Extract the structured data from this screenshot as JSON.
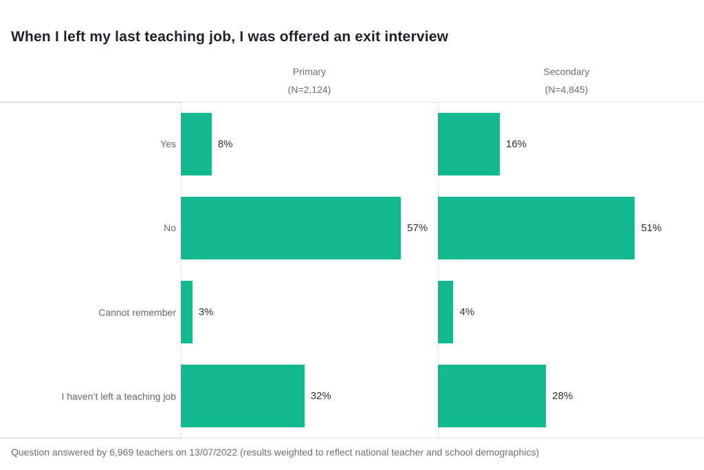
{
  "colors": {
    "bar": "#12b88e",
    "title_text": "#1f2328",
    "muted_text": "#6a6f74",
    "category_text": "#63686d",
    "value_text": "#2e3236",
    "axis_line_dark": "#c6c6c6",
    "axis_line_light": "#e6e6e6",
    "baseline_dashed": "#d8d8d8"
  },
  "chart_data": {
    "type": "bar",
    "orientation": "horizontal",
    "title": "When I left my last teaching job, I was offered an exit interview",
    "categories": [
      "Yes",
      "No",
      "Cannot remember",
      "I haven’t left a teaching job"
    ],
    "series": [
      {
        "name": "Primary",
        "n_label": "(N=2,124)",
        "values": [
          8,
          57,
          3,
          32
        ],
        "labels": [
          "8%",
          "57%",
          "3%",
          "32%"
        ]
      },
      {
        "name": "Secondary",
        "n_label": "(N=4,845)",
        "values": [
          16,
          51,
          4,
          28
        ],
        "labels": [
          "16%",
          "51%",
          "4%",
          "28%"
        ]
      }
    ],
    "value_suffix": "%",
    "xlim": [
      0,
      60
    ],
    "grid": "off",
    "legend": "none",
    "footnote": "Question answered by 6,969 teachers on 13/07/2022 (results weighted to reflect national teacher and school demographics)"
  }
}
